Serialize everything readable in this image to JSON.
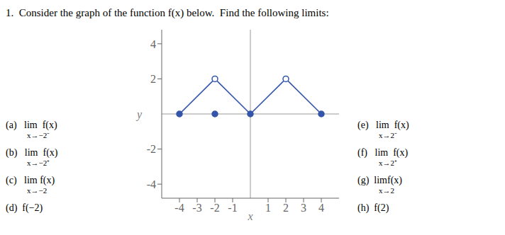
{
  "chart_data": {
    "type": "line",
    "title": "1.  Consider the graph of the function f(x) below.  Find the following limits:",
    "x_label": "x",
    "y_label": "y",
    "xlim": [
      -5.0,
      5.0
    ],
    "ylim": [
      -4.8,
      4.8
    ],
    "xticks": [
      -4,
      -3,
      -2,
      -1,
      1,
      2,
      3,
      4
    ],
    "yticks": [
      -4,
      -2,
      2,
      4
    ],
    "grid": false,
    "series": [
      {
        "type": "line",
        "color": "#3355aa",
        "x": [
          -4,
          -2
        ],
        "values": [
          0,
          2
        ]
      },
      {
        "type": "line",
        "color": "#3355aa",
        "x": [
          -2,
          0
        ],
        "values": [
          2,
          0
        ]
      },
      {
        "type": "line",
        "color": "#3355aa",
        "x": [
          0,
          2
        ],
        "values": [
          0,
          2
        ]
      },
      {
        "type": "line",
        "color": "#3355aa",
        "x": [
          2,
          4
        ],
        "values": [
          2,
          0
        ]
      },
      {
        "type": "scatter",
        "marker": "filled",
        "color": "#3355aa",
        "x": [
          -4,
          -2,
          0,
          4
        ],
        "values": [
          0,
          0,
          0,
          0
        ]
      },
      {
        "type": "scatter",
        "marker": "open",
        "color": "#3355aa",
        "x": [
          -2,
          2
        ],
        "values": [
          2,
          2
        ]
      }
    ],
    "annotations": [
      {
        "text": "(a)   lim  f(x)",
        "sub": "x→−2⁻"
      },
      {
        "text": "(b)   lim  f(x)",
        "sub": "x→−2⁺"
      },
      {
        "text": "(c)   lim f(x)",
        "sub": "x→−2"
      },
      {
        "text": "(d)  f(−2)"
      },
      {
        "text": "(e)   lim  f(x)",
        "sub": "x→2⁻"
      },
      {
        "text": "(f)   lim  f(x)",
        "sub": "x→2⁺"
      },
      {
        "text": "(g)  limf(x)",
        "sub": "x→2"
      },
      {
        "text": "(h)  f(2)"
      }
    ]
  }
}
